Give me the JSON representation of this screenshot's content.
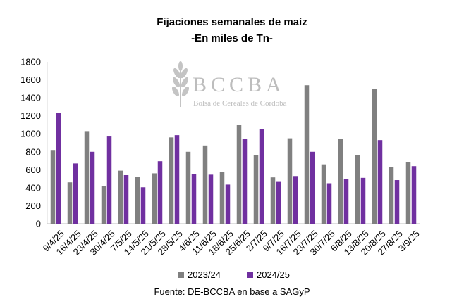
{
  "chart_data": {
    "type": "bar",
    "title": "Fijaciones semanales de maíz",
    "subtitle": "-En miles de Tn-",
    "xlabel": "",
    "ylabel": "",
    "ylim": [
      0,
      1800
    ],
    "yticks": [
      0,
      200,
      400,
      600,
      800,
      1000,
      1200,
      1400,
      1600,
      1800
    ],
    "grid": false,
    "legend_position": "bottom",
    "categories": [
      "9/4/25",
      "16/4/25",
      "23/4/25",
      "30/4/25",
      "7/5/25",
      "14/5/25",
      "21/5/25",
      "28/5/25",
      "4/6/25",
      "11/6/25",
      "18/6/25",
      "25/6/25",
      "2/7/25",
      "9/7/25",
      "16/7/25",
      "23/7/25",
      "30/7/25",
      "6/8/25",
      "13/8/25",
      "20/8/25",
      "27/8/25",
      "3/9/25"
    ],
    "series": [
      {
        "name": "2023/24",
        "color": "#808080",
        "values": [
          820,
          460,
          1030,
          420,
          590,
          520,
          560,
          960,
          800,
          870,
          575,
          1100,
          765,
          515,
          950,
          1540,
          660,
          940,
          760,
          1500,
          630,
          685
        ]
      },
      {
        "name": "2024/25",
        "color": "#7030a0",
        "values": [
          1235,
          670,
          800,
          970,
          540,
          405,
          695,
          985,
          550,
          545,
          435,
          945,
          1055,
          465,
          530,
          800,
          450,
          500,
          510,
          930,
          485,
          640
        ]
      }
    ],
    "source": "Fuente: DE-BCCBA en base a SAGyP"
  },
  "watermark": {
    "acronym": "BCCBA",
    "name": "Bolsa de Cereales de Córdoba",
    "color": "#bdbdbd",
    "icon": "wheat-ear-icon"
  }
}
